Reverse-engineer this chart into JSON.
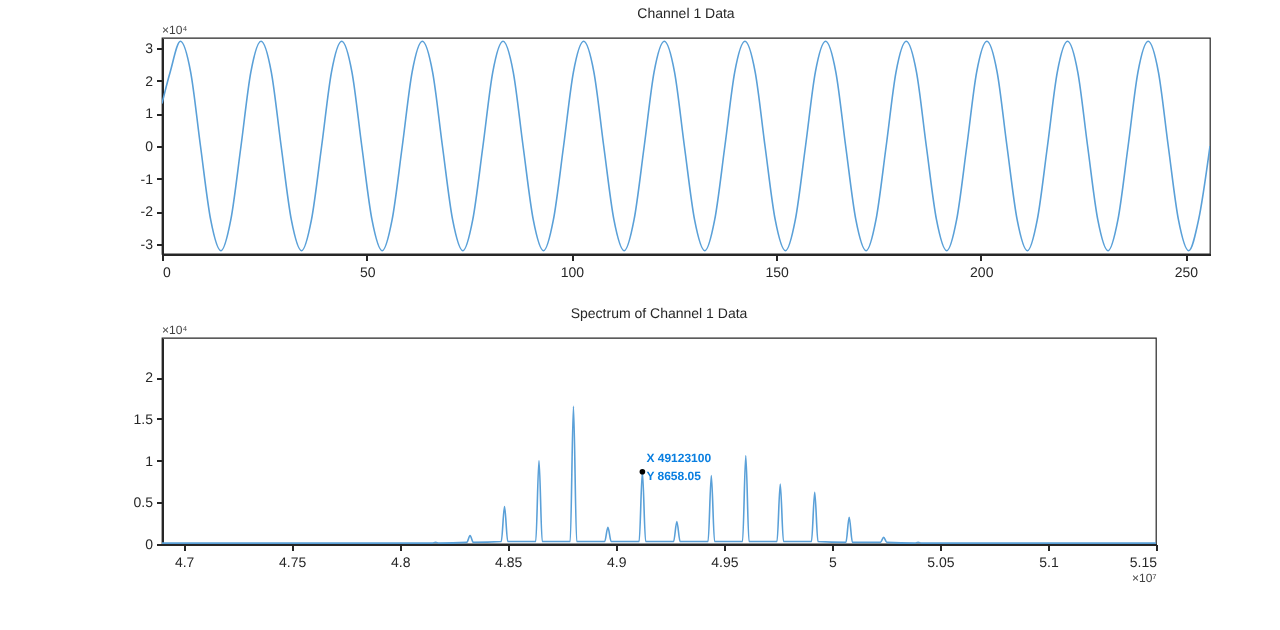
{
  "chart_data": [
    {
      "type": "line",
      "title": "Channel 1 Data",
      "grid": false,
      "xlim": [
        0,
        256
      ],
      "xticks": [
        0,
        50,
        100,
        150,
        200,
        250
      ],
      "ylim": [
        -3.3,
        3.3
      ],
      "yticks": [
        -3,
        -2,
        -1,
        0,
        1,
        2,
        3
      ],
      "annotations": [
        "×10⁴"
      ],
      "series": [
        {
          "color": "#5aa0d8",
          "x": [
            0,
            2.0,
            4.5,
            7.0,
            9.4,
            11.9,
            14.4,
            16.8,
            19.3,
            21.7,
            24.2,
            26.7,
            29.1,
            31.6,
            34.1,
            36.5,
            39.0,
            41.4,
            43.9,
            46.4,
            48.8,
            51.3,
            53.8,
            56.2,
            58.7,
            61.1,
            63.6,
            66.1,
            68.5,
            71.0,
            73.5,
            75.9,
            78.4,
            80.8,
            83.3,
            85.8,
            88.2,
            90.7,
            93.2,
            95.6,
            98.1,
            100.5,
            103.0,
            105.5,
            107.9,
            110.4,
            112.9,
            115.3,
            117.8,
            120.2,
            122.7,
            125.2,
            127.6,
            130.1,
            132.6,
            135.0,
            137.5,
            139.9,
            142.4,
            144.9,
            147.3,
            149.8,
            152.3,
            154.7,
            157.2,
            159.6,
            162.1,
            164.6,
            167.0,
            169.5,
            172.0,
            174.4,
            176.9,
            179.3,
            181.8,
            184.3,
            186.7,
            189.2,
            191.7,
            194.1,
            196.6,
            199.0,
            201.5,
            204.0,
            206.4,
            208.9,
            211.4,
            213.8,
            216.3,
            218.7,
            221.2,
            223.7,
            226.1,
            228.6,
            231.1,
            233.5,
            236.0,
            238.4,
            240.9,
            243.4,
            245.8,
            248.3,
            250.8,
            253.2,
            256
          ],
          "values": [
            1.3,
            2.26,
            3.2,
            2.26,
            0,
            -2.26,
            -3.2,
            -2.26,
            0,
            2.26,
            3.2,
            2.26,
            0,
            -2.26,
            -3.2,
            -2.26,
            0,
            2.26,
            3.2,
            2.26,
            0,
            -2.26,
            -3.2,
            -2.26,
            0,
            2.26,
            3.2,
            2.26,
            0,
            -2.26,
            -3.2,
            -2.26,
            0,
            2.26,
            3.2,
            2.26,
            0,
            -2.26,
            -3.2,
            -2.26,
            0,
            2.26,
            3.2,
            2.26,
            0,
            -2.26,
            -3.2,
            -2.26,
            0,
            2.26,
            3.2,
            2.26,
            0,
            -2.26,
            -3.2,
            -2.26,
            0,
            2.26,
            3.2,
            2.26,
            0,
            -2.26,
            -3.2,
            -2.26,
            0,
            2.26,
            3.2,
            2.26,
            0,
            -2.26,
            -3.2,
            -2.26,
            0,
            2.26,
            3.2,
            2.26,
            0,
            -2.26,
            -3.2,
            -2.26,
            0,
            2.26,
            3.2,
            2.26,
            0,
            -2.26,
            -3.2,
            -2.26,
            0,
            2.26,
            3.2,
            2.26,
            0,
            -2.26,
            -3.2,
            -2.26,
            0,
            2.26,
            3.2,
            2.26,
            0,
            -2.26,
            -3.2,
            -2.26,
            0
          ]
        }
      ]
    },
    {
      "type": "line",
      "title": "Spectrum of Channel 1 Data",
      "grid": false,
      "xlim": [
        4.69,
        5.15
      ],
      "xticks": [
        4.7,
        4.75,
        4.8,
        4.85,
        4.9,
        4.95,
        5,
        5.05,
        5.1,
        5.15
      ],
      "ylim": [
        0,
        2.47
      ],
      "yticks": [
        0,
        0.5,
        1,
        1.5,
        2
      ],
      "annotations": [
        "×10⁴",
        "×10⁷",
        {
          "text": "X 49123100\nY 8658.05",
          "x": 4.91231,
          "y": 0.865805
        }
      ],
      "series": [
        {
          "color": "#5aa0d8",
          "x": [
            4.69,
            4.81511,
            4.81661,
            4.81811,
            4.83106,
            4.83256,
            4.83406,
            4.84701,
            4.84851,
            4.85001,
            4.86296,
            4.86446,
            4.86596,
            4.87891,
            4.88041,
            4.88191,
            4.89486,
            4.89636,
            4.89786,
            4.91081,
            4.91231,
            4.91381,
            4.92676,
            4.92826,
            4.92976,
            4.94271,
            4.94421,
            4.94571,
            4.95866,
            4.96016,
            4.96166,
            4.97461,
            4.97611,
            4.97761,
            4.99056,
            4.99206,
            4.99356,
            5.00651,
            5.00801,
            5.00951,
            5.02246,
            5.02396,
            5.02546,
            5.03841,
            5.03991,
            5.04141,
            5.15
          ],
          "values": [
            0.01,
            0.01,
            0.02,
            0.01,
            0.02,
            0.1,
            0.02,
            0.03,
            0.45,
            0.03,
            0.03,
            1.0,
            0.03,
            0.03,
            1.65,
            0.03,
            0.03,
            0.2,
            0.03,
            0.03,
            0.865805,
            0.03,
            0.03,
            0.27,
            0.03,
            0.03,
            0.82,
            0.03,
            0.03,
            1.06,
            0.03,
            0.03,
            0.72,
            0.03,
            0.03,
            0.62,
            0.03,
            0.02,
            0.32,
            0.02,
            0.02,
            0.08,
            0.02,
            0.01,
            0.02,
            0.01,
            0.01
          ]
        }
      ]
    }
  ]
}
